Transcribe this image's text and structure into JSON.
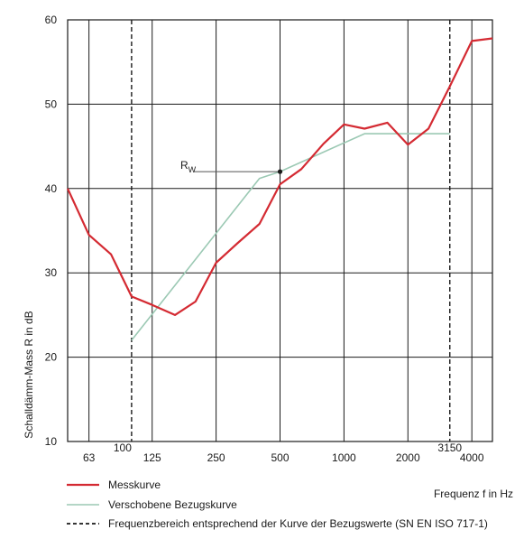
{
  "chart_data": {
    "type": "line",
    "ylabel": "Schalldämm-Mass R in dB",
    "xlabel": "Frequenz f in Hz",
    "ylim": [
      10,
      60
    ],
    "yticks": [
      10,
      20,
      30,
      40,
      50,
      60
    ],
    "x_scale": "log",
    "xlim": [
      50,
      5000
    ],
    "xticks_lower": [
      "63",
      "125",
      "250",
      "500",
      "1000",
      "2000",
      "4000"
    ],
    "xticks_upper": [
      "100",
      "3150"
    ],
    "grid": true,
    "annotation": {
      "label": "R",
      "subscript": "W",
      "x": 500,
      "y": 42
    },
    "colors": {
      "messkurve": "#d42a32",
      "bezugskurve": "#9cc9b4",
      "grid": "#1a1a1a"
    },
    "series": [
      {
        "name": "Messkurve",
        "x": [
          50,
          63,
          80,
          100,
          125,
          160,
          200,
          250,
          315,
          400,
          500,
          630,
          800,
          1000,
          1250,
          1600,
          2000,
          2500,
          3150,
          4000,
          5000
        ],
        "y": [
          40,
          34.5,
          32.2,
          27.2,
          26.2,
          25,
          26.6,
          31.2,
          33.5,
          35.8,
          40.5,
          42.3,
          45.3,
          47.6,
          47.1,
          47.8,
          45.2,
          47.1,
          52.1,
          57.5,
          57.8
        ]
      },
      {
        "name": "Verschobene Bezugskurve",
        "x": [
          100,
          400,
          500,
          1250,
          3150
        ],
        "y": [
          22,
          41.2,
          42,
          46.5,
          46.5
        ]
      }
    ],
    "range_lines": {
      "name": "Frequenzbereich entsprechend der Kurve der Bezugswerte (SN EN ISO 717-1)",
      "x": [
        100,
        3150
      ]
    }
  },
  "legend": {
    "messkurve": "Messkurve",
    "bezugskurve": "Verschobene Bezugskurve",
    "range": "Frequenzbereich entsprechend der Kurve der Bezugswerte (SN EN ISO 717-1)"
  }
}
